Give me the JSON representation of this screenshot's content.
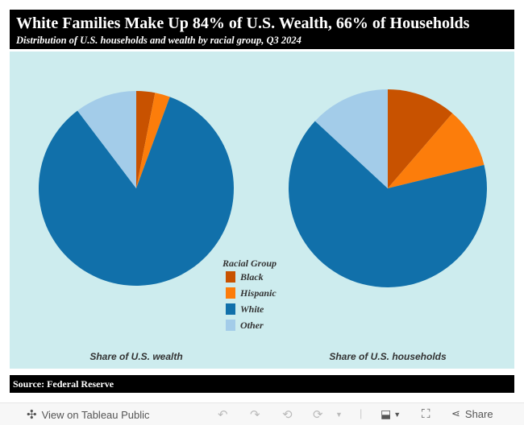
{
  "header": {
    "title": "White Families Make Up 84% of U.S. Wealth, 66% of Households",
    "subtitle": "Distribution of U.S. households and wealth by racial group, Q3 2024"
  },
  "chart_data": [
    {
      "type": "pie",
      "title": "Share of U.S. wealth",
      "categories": [
        "Black",
        "Hispanic",
        "White",
        "Other"
      ],
      "values": [
        3.1,
        2.5,
        84.1,
        10.3
      ],
      "unit": "%"
    },
    {
      "type": "pie",
      "title": "Share of U.S. households",
      "categories": [
        "Black",
        "Hispanic",
        "White",
        "Other"
      ],
      "values": [
        11.3,
        9.9,
        65.7,
        13.1
      ],
      "unit": "%"
    }
  ],
  "legend": {
    "title": "Racial Group",
    "items": [
      {
        "label": "Black",
        "color": "#c85200"
      },
      {
        "label": "Hispanic",
        "color": "#fc7d0b"
      },
      {
        "label": "White",
        "color": "#1170aa"
      },
      {
        "label": "Other",
        "color": "#a3cce9"
      }
    ]
  },
  "source": "Source:  Federal  Reserve",
  "toolbar": {
    "view_label": "View on Tableau Public",
    "share_label": "Share"
  }
}
